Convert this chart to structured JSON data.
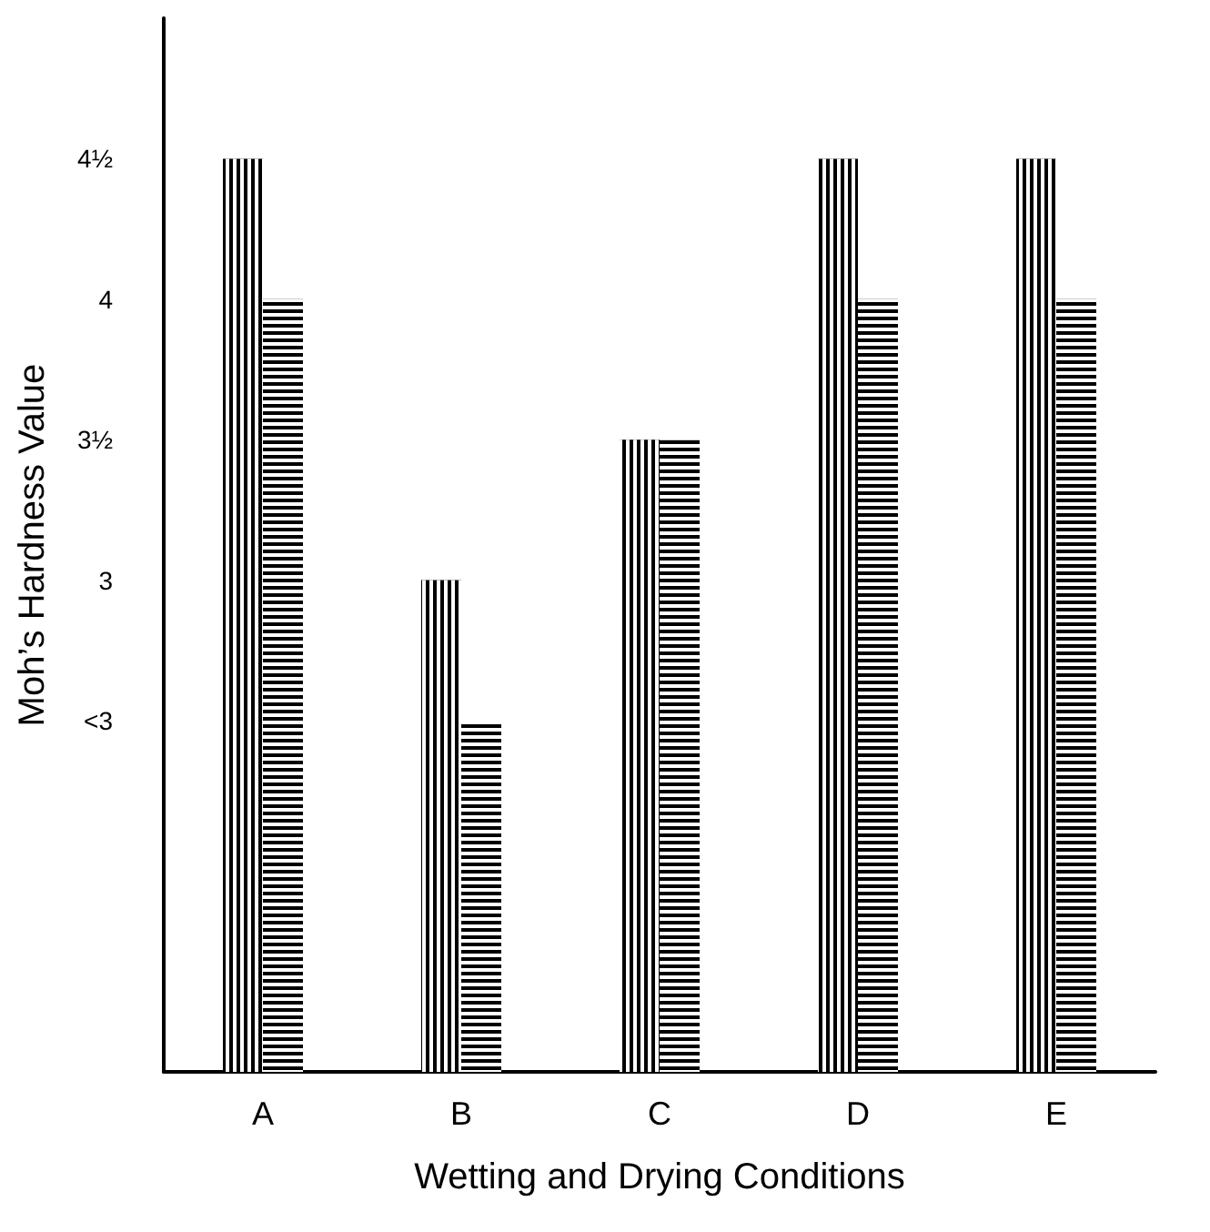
{
  "chart_data": {
    "type": "bar",
    "xlabel": "Wetting and Drying Conditions",
    "ylabel": "Moh’s Hardness Value",
    "categories": [
      "A",
      "B",
      "C",
      "D",
      "E"
    ],
    "series": [
      {
        "color": "#000000",
        "values": [
          4.5,
          3,
          3.5,
          4.5,
          4.5
        ]
      },
      {
        "color": "#000000",
        "values": [
          4,
          2.5,
          3.5,
          4,
          4
        ]
      }
    ],
    "ylim": [
      1.25,
      5
    ],
    "yticks": [
      {
        "value": 2.5,
        "label": "<3"
      },
      {
        "value": 3,
        "label": "3"
      },
      {
        "value": 3.5,
        "label": "3½"
      },
      {
        "value": 4,
        "label": "4"
      },
      {
        "value": 4.5,
        "label": "4½"
      }
    ],
    "grid": false
  }
}
